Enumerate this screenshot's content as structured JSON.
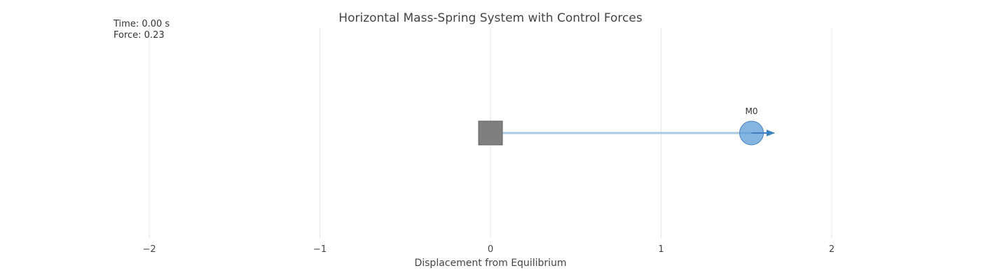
{
  "chart_data": {
    "type": "scatter",
    "title": "Horizontal Mass-Spring System with Control Forces",
    "xlabel": "Displacement from Equilibrium",
    "ylabel": "",
    "xlim": [
      -2.3,
      2.3
    ],
    "ylim": [
      -1,
      1
    ],
    "x_ticks": [
      -2,
      -1,
      0,
      1,
      2
    ],
    "x_tick_labels": [
      "−2",
      "−1",
      "0",
      "1",
      "2"
    ],
    "grid": "vertical",
    "time_text": "Time: 0.00 s",
    "force_text": "Force: 0.23",
    "anchor": {
      "name": "wall",
      "x": 0,
      "y": 0
    },
    "masses": [
      {
        "name": "M0",
        "x": 1.53,
        "y": 0,
        "force": 0.23
      }
    ],
    "colors": {
      "mass": "#5b9bd5",
      "spring": "#a9c9e3",
      "arrow": "#3a7fc0",
      "anchor": "#7f7f7f",
      "grid": "#e6e6e6"
    }
  }
}
